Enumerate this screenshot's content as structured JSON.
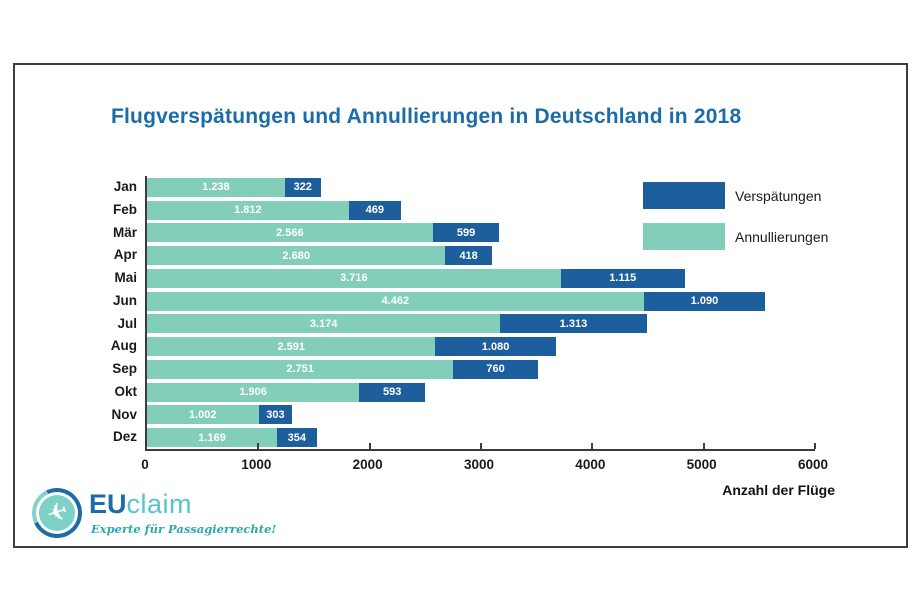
{
  "title": "Flugverspätungen und Annullierungen in Deutschland in 2018",
  "legend": [
    {
      "label": "Verspätungen",
      "color": "#1d5f9c"
    },
    {
      "label": "Annullierungen",
      "color": "#82ceba"
    }
  ],
  "logo": {
    "brand_eu": "EU",
    "brand_claim": "claim",
    "tagline": "Experte für Passagierrechte!",
    "icon": "airplane-icon",
    "plane_glyph": "✈",
    "brand_blue": "#1b6ca8",
    "brand_teal": "#56c5cb"
  },
  "chart_data": {
    "type": "bar",
    "orientation": "horizontal",
    "stacked": true,
    "title": "Flugverspätungen und Annullierungen in Deutschland in 2018",
    "categories": [
      "Jan",
      "Feb",
      "Mär",
      "Apr",
      "Mai",
      "Jun",
      "Jul",
      "Aug",
      "Sep",
      "Okt",
      "Nov",
      "Dez"
    ],
    "series": [
      {
        "name": "Annullierungen",
        "color": "#82ceba",
        "values": [
          1238,
          1812,
          2566,
          2680,
          3716,
          4462,
          3174,
          2591,
          2751,
          1906,
          1002,
          1169
        ],
        "labels": [
          "1.238",
          "1.812",
          "2.566",
          "2.680",
          "3.716",
          "4.462",
          "3.174",
          "2.591",
          "2.751",
          "1.906",
          "1.002",
          "1.169"
        ]
      },
      {
        "name": "Verspätungen",
        "color": "#1d5f9c",
        "values": [
          322,
          469,
          599,
          418,
          1115,
          1090,
          1313,
          1080,
          760,
          593,
          303,
          354
        ],
        "labels": [
          "322",
          "469",
          "599",
          "418",
          "1.115",
          "1.090",
          "1.313",
          "1.080",
          "760",
          "593",
          "303",
          "354"
        ]
      }
    ],
    "xlabel": "Anzahl der Flüge",
    "xlim": [
      0,
      6000
    ],
    "xticks": [
      0,
      1000,
      2000,
      3000,
      4000,
      5000,
      6000
    ],
    "xtick_labels": [
      "0",
      "1000",
      "2000",
      "3000",
      "4000",
      "5000",
      "6000"
    ],
    "legend_position": "top-right",
    "grid": false
  }
}
